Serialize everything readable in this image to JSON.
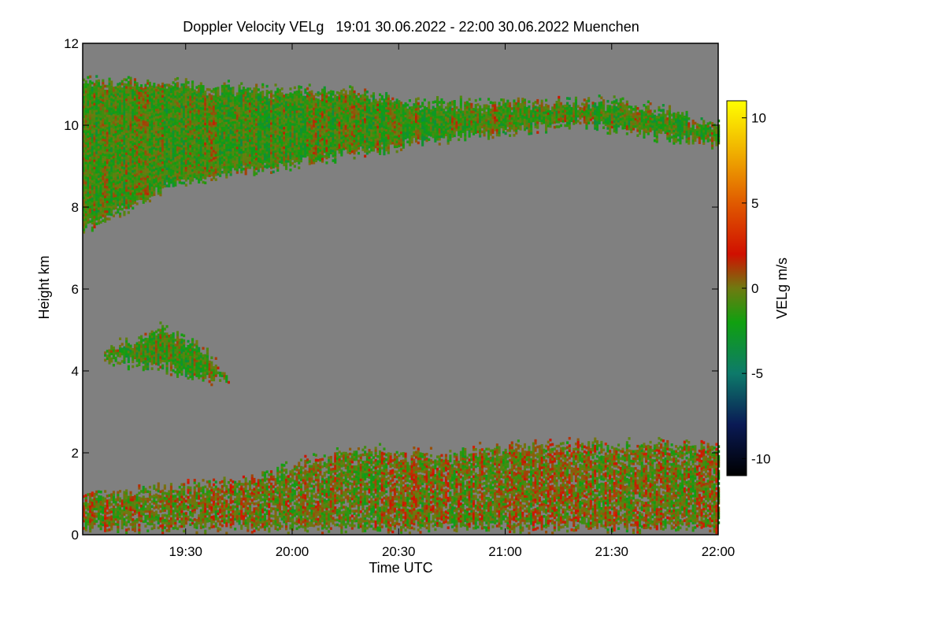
{
  "chart_data": {
    "type": "heatmap",
    "title": "Doppler Velocity VELg   19:01 30.06.2022 - 22:00 30.06.2022 Muenchen",
    "xlabel": "Time UTC",
    "ylabel": "Height km",
    "xlim": [
      0,
      179
    ],
    "ylim": [
      0,
      12
    ],
    "x_ticks": [
      {
        "value": 29,
        "label": "19:30"
      },
      {
        "value": 59,
        "label": "20:00"
      },
      {
        "value": 89,
        "label": "20:30"
      },
      {
        "value": 119,
        "label": "21:00"
      },
      {
        "value": 149,
        "label": "21:30"
      },
      {
        "value": 179,
        "label": "22:00"
      }
    ],
    "y_ticks": [
      {
        "value": 0,
        "label": "0"
      },
      {
        "value": 2,
        "label": "2"
      },
      {
        "value": 4,
        "label": "4"
      },
      {
        "value": 6,
        "label": "6"
      },
      {
        "value": 8,
        "label": "8"
      },
      {
        "value": 10,
        "label": "10"
      },
      {
        "value": 12,
        "label": "12"
      }
    ],
    "colorbar": {
      "label": "VELg m/s",
      "range": [
        -11,
        11
      ],
      "ticks": [
        {
          "value": 10,
          "label": "10"
        },
        {
          "value": 5,
          "label": "5"
        },
        {
          "value": 0,
          "label": "0"
        },
        {
          "value": -5,
          "label": "-5"
        },
        {
          "value": -10,
          "label": "-10"
        }
      ],
      "stops": [
        {
          "value": -11,
          "color": "#000000"
        },
        {
          "value": -8,
          "color": "#0a1a55"
        },
        {
          "value": -5,
          "color": "#0d7a6a"
        },
        {
          "value": -2,
          "color": "#10a010"
        },
        {
          "value": 0,
          "color": "#6f7a10"
        },
        {
          "value": 2,
          "color": "#d01000"
        },
        {
          "value": 5,
          "color": "#e05a00"
        },
        {
          "value": 8,
          "color": "#f0b000"
        },
        {
          "value": 11,
          "color": "#ffff00"
        }
      ]
    },
    "background_color": "#808080",
    "regions": [
      {
        "name": "upper cirrus layer",
        "time": [
          0,
          179
        ],
        "top_km": [
          [
            0,
            11.1
          ],
          [
            25,
            11.05
          ],
          [
            50,
            10.9
          ],
          [
            75,
            10.85
          ],
          [
            90,
            10.6
          ],
          [
            110,
            10.55
          ],
          [
            130,
            10.6
          ],
          [
            150,
            10.6
          ],
          [
            163,
            10.4
          ],
          [
            178,
            10.0
          ]
        ],
        "base_km": [
          [
            0,
            7.4
          ],
          [
            5,
            7.6
          ],
          [
            15,
            8.0
          ],
          [
            25,
            8.5
          ],
          [
            40,
            8.75
          ],
          [
            60,
            9.0
          ],
          [
            80,
            9.3
          ],
          [
            100,
            9.6
          ],
          [
            120,
            9.8
          ],
          [
            140,
            10.0
          ],
          [
            158,
            9.7
          ],
          [
            178,
            9.5
          ]
        ],
        "mean_velocity_ms": -1
      },
      {
        "name": "mid-level patch",
        "time": [
          6,
          41
        ],
        "top_km": [
          [
            6,
            4.5
          ],
          [
            22,
            5.05
          ],
          [
            34,
            4.6
          ],
          [
            41,
            3.8
          ]
        ],
        "base_km": [
          [
            6,
            4.2
          ],
          [
            22,
            4.0
          ],
          [
            34,
            3.75
          ],
          [
            41,
            3.7
          ]
        ],
        "mean_velocity_ms": -1
      },
      {
        "name": "boundary layer",
        "time": [
          0,
          179
        ],
        "top_km": [
          [
            0,
            1.0
          ],
          [
            30,
            1.2
          ],
          [
            50,
            1.5
          ],
          [
            75,
            2.1
          ],
          [
            100,
            2.0
          ],
          [
            120,
            2.2
          ],
          [
            150,
            2.25
          ],
          [
            179,
            2.2
          ]
        ],
        "base_km": [
          [
            0,
            0.1
          ],
          [
            179,
            0.1
          ]
        ],
        "mean_velocity_ms": 0
      }
    ]
  }
}
